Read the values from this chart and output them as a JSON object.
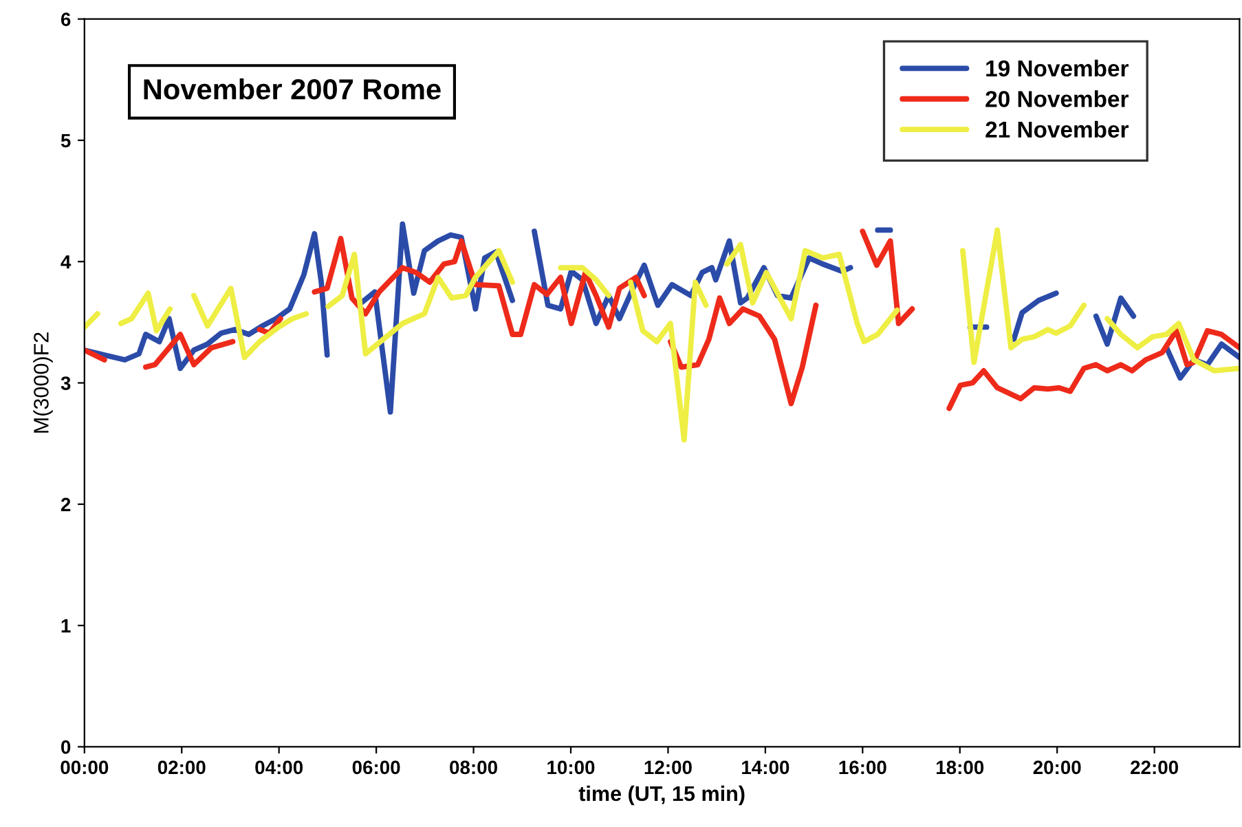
{
  "chart_data": {
    "type": "line",
    "title": "November 2007 Rome",
    "xlabel": "time (UT, 15 min)",
    "ylabel": "M(3000)F2",
    "xlim": [
      0,
      23.75
    ],
    "ylim": [
      0,
      6
    ],
    "yticks": [
      0,
      1,
      2,
      3,
      4,
      5,
      6
    ],
    "xticks": [
      {
        "value": 0,
        "label": "00:00"
      },
      {
        "value": 2,
        "label": "02:00"
      },
      {
        "value": 4,
        "label": "04:00"
      },
      {
        "value": 6,
        "label": "06:00"
      },
      {
        "value": 8,
        "label": "08:00"
      },
      {
        "value": 10,
        "label": "10:00"
      },
      {
        "value": 12,
        "label": "12:00"
      },
      {
        "value": 14,
        "label": "14:00"
      },
      {
        "value": 16,
        "label": "16:00"
      },
      {
        "value": 18,
        "label": "18:00"
      },
      {
        "value": 20,
        "label": "20:00"
      },
      {
        "value": 22,
        "label": "22:00"
      }
    ],
    "grid": false,
    "legend": "top right",
    "marker": "none",
    "line_style": "solid",
    "series": [
      {
        "name": "19 November",
        "color": "#2b4ba8",
        "x": [
          0,
          0.41,
          0.83,
          1.12,
          1.26,
          1.54,
          1.74,
          1.97,
          2.25,
          2.53,
          2.81,
          3.09,
          3.38,
          3.66,
          3.94,
          4.22,
          4.51,
          4.73,
          4.87,
          4.99,
          5.3,
          5.69,
          5.97,
          6.29,
          6.54,
          6.77,
          6.99,
          7.27,
          7.53,
          7.75,
          8.04,
          8.23,
          8.46,
          8.8,
          9.0,
          9.25,
          9.53,
          9.79,
          10.01,
          10.24,
          10.52,
          10.78,
          11.0,
          11.28,
          11.51,
          11.79,
          12.08,
          12.47,
          12.7,
          12.9,
          12.98,
          13.26,
          13.49,
          13.63,
          13.97,
          14.25,
          14.53,
          14.9,
          15.18,
          15.58,
          15.75,
          16.0,
          16.31,
          16.57,
          17.0,
          18.21,
          18.55,
          18.8,
          19.11,
          19.28,
          19.62,
          19.98,
          20.4,
          20.8,
          21.03,
          21.31,
          21.57,
          21.9,
          22.25,
          22.53,
          22.81,
          23.09,
          23.38,
          23.75
        ],
        "values": [
          3.27,
          3.23,
          3.19,
          3.24,
          3.4,
          3.34,
          3.53,
          3.12,
          3.27,
          3.32,
          3.41,
          3.44,
          3.4,
          3.47,
          3.53,
          3.61,
          3.89,
          4.23,
          3.83,
          3.23,
          null,
          3.66,
          3.75,
          2.76,
          4.31,
          3.74,
          4.09,
          4.17,
          4.22,
          4.2,
          3.61,
          4.03,
          4.08,
          3.68,
          null,
          4.25,
          3.64,
          3.61,
          3.92,
          3.85,
          3.49,
          3.72,
          3.53,
          3.78,
          3.97,
          3.64,
          3.81,
          3.72,
          3.91,
          3.95,
          3.85,
          4.17,
          3.66,
          3.7,
          3.95,
          3.72,
          3.7,
          4.03,
          3.98,
          3.92,
          3.95,
          null,
          4.26,
          4.26,
          null,
          3.46,
          3.46,
          null,
          3.36,
          3.58,
          3.68,
          3.74,
          null,
          3.55,
          3.32,
          3.7,
          3.55,
          null,
          3.29,
          3.04,
          3.19,
          3.15,
          3.32,
          3.21
        ]
      },
      {
        "name": "20 November",
        "color": "#ee2a1a",
        "x": [
          0,
          0.41,
          0.7,
          1.26,
          1.45,
          1.97,
          2.25,
          2.61,
          3.05,
          3.3,
          3.6,
          3.8,
          4.03,
          4.3,
          4.73,
          4.99,
          5.27,
          5.5,
          5.78,
          6.06,
          6.54,
          6.82,
          7.1,
          7.39,
          7.61,
          7.75,
          8.04,
          8.52,
          8.8,
          8.97,
          9.25,
          9.51,
          9.79,
          10.01,
          10.3,
          10.52,
          10.78,
          11.0,
          11.34,
          11.51,
          11.8,
          12.05,
          12.27,
          12.61,
          12.84,
          13.06,
          13.26,
          13.54,
          13.88,
          14.19,
          14.53,
          14.76,
          15.04,
          15.5,
          16.0,
          16.29,
          16.57,
          16.74,
          17.02,
          17.3,
          17.78,
          18.01,
          18.26,
          18.49,
          18.77,
          19.25,
          19.53,
          19.81,
          20.04,
          20.27,
          20.55,
          20.8,
          21.03,
          21.31,
          21.54,
          21.82,
          22.16,
          22.45,
          22.67,
          22.81,
          23.09,
          23.38,
          23.75
        ],
        "values": [
          3.27,
          3.19,
          null,
          3.13,
          3.15,
          3.4,
          3.15,
          3.29,
          3.34,
          null,
          3.44,
          3.41,
          3.53,
          null,
          3.75,
          3.78,
          4.19,
          3.7,
          3.57,
          3.75,
          3.95,
          3.91,
          3.83,
          3.98,
          4.0,
          4.17,
          3.81,
          3.8,
          3.4,
          3.4,
          3.81,
          3.73,
          3.87,
          3.49,
          3.91,
          3.72,
          3.46,
          3.78,
          3.87,
          3.72,
          null,
          3.34,
          3.13,
          3.15,
          3.36,
          3.7,
          3.49,
          3.61,
          3.55,
          3.36,
          2.83,
          3.13,
          3.64,
          null,
          4.25,
          3.97,
          4.17,
          3.49,
          3.61,
          null,
          2.79,
          2.98,
          3.0,
          3.1,
          2.96,
          2.87,
          2.96,
          2.95,
          2.96,
          2.93,
          3.12,
          3.15,
          3.1,
          3.15,
          3.1,
          3.19,
          3.25,
          3.43,
          3.15,
          3.17,
          3.43,
          3.4,
          3.29
        ]
      },
      {
        "name": "21 November",
        "color": "#eeee44",
        "x": [
          0,
          0.27,
          0.5,
          0.75,
          0.97,
          1.31,
          1.48,
          1.76,
          2.0,
          2.25,
          2.53,
          3.01,
          3.29,
          3.6,
          3.99,
          4.28,
          4.56,
          4.8,
          5.01,
          5.3,
          5.55,
          5.78,
          6.54,
          6.99,
          7.27,
          7.55,
          7.84,
          8.04,
          8.52,
          8.8,
          9.3,
          9.79,
          10.24,
          10.52,
          10.78,
          11.0,
          11.23,
          11.48,
          11.77,
          12.05,
          12.33,
          12.56,
          12.78,
          13.0,
          13.21,
          13.49,
          13.74,
          14.02,
          14.53,
          14.82,
          15.18,
          15.52,
          15.89,
          16.03,
          16.31,
          16.71,
          17.5,
          18.06,
          18.29,
          18.77,
          19.05,
          19.28,
          19.53,
          19.81,
          19.98,
          20.27,
          20.55,
          20.8,
          21.03,
          21.31,
          21.65,
          21.96,
          22.25,
          22.5,
          22.81,
          23.23,
          23.75
        ],
        "values": [
          3.46,
          3.57,
          null,
          3.49,
          3.53,
          3.74,
          3.43,
          3.61,
          null,
          3.72,
          3.47,
          3.78,
          3.21,
          3.34,
          3.46,
          3.53,
          3.57,
          null,
          3.63,
          3.72,
          4.06,
          3.24,
          3.49,
          3.57,
          3.87,
          3.7,
          3.72,
          3.87,
          4.09,
          3.83,
          null,
          3.95,
          3.95,
          3.85,
          3.72,
          null,
          3.83,
          3.43,
          3.34,
          3.49,
          2.53,
          3.83,
          3.64,
          null,
          3.98,
          4.14,
          3.66,
          3.91,
          3.53,
          4.09,
          4.03,
          4.06,
          3.49,
          3.34,
          3.4,
          3.6,
          null,
          4.09,
          3.17,
          4.26,
          3.29,
          3.36,
          3.38,
          3.44,
          3.41,
          3.47,
          3.64,
          null,
          3.53,
          3.4,
          3.29,
          3.38,
          3.4,
          3.49,
          3.19,
          3.1,
          3.12
        ]
      }
    ]
  }
}
